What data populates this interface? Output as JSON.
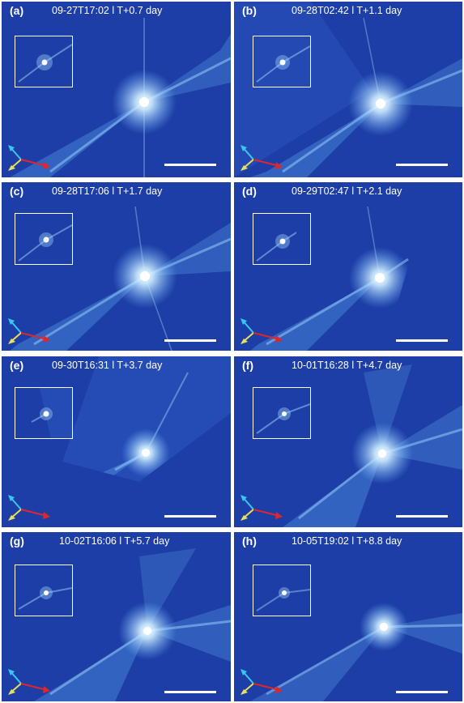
{
  "figure": {
    "panels": [
      {
        "label": "(a)",
        "timestamp": "09-27T17:02 l T+0.7 day"
      },
      {
        "label": "(b)",
        "timestamp": "09-28T02:42 l T+1.1 day"
      },
      {
        "label": "(c)",
        "timestamp": "09-28T17:06 l T+1.7 day"
      },
      {
        "label": "(d)",
        "timestamp": "09-29T02:47 l T+2.1 day"
      },
      {
        "label": "(e)",
        "timestamp": "09-30T16:31 l T+3.7 day"
      },
      {
        "label": "(f)",
        "timestamp": "10-01T16:28 l T+4.7 day"
      },
      {
        "label": "(g)",
        "timestamp": "10-02T16:06 l T+5.7 day"
      },
      {
        "label": "(h)",
        "timestamp": "10-05T19:02 l T+8.8 day"
      }
    ]
  },
  "colors": {
    "background": "#1d3ea6",
    "ejecta": "#9fd4ff",
    "core": "#ffffff",
    "axis_cyan": "#39c6f0",
    "axis_yellow": "#e8e05a",
    "axis_red": "#e0262a"
  }
}
